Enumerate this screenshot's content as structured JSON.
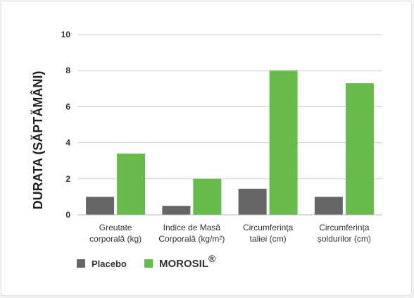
{
  "chart_data": {
    "type": "bar",
    "title": "",
    "ylabel": "DURATA (SĂPTĂMÂNI)",
    "xlabel": "",
    "ylim": [
      0,
      10
    ],
    "yticks": [
      0,
      2,
      4,
      6,
      8,
      10
    ],
    "grid": true,
    "legend_position": "bottom-left",
    "categories": [
      [
        "Greutate",
        "corporală (kg)"
      ],
      [
        "Indice de Masă",
        "Corporală (kg/m²)"
      ],
      [
        "Circumferința",
        "taliei (cm)"
      ],
      [
        "Circumferința",
        "șoldurilor (cm)"
      ]
    ],
    "series": [
      {
        "name": "Placebo",
        "color": "#666666",
        "values": [
          1.0,
          0.5,
          1.45,
          1.0
        ]
      },
      {
        "name": "MOROSIL",
        "name_suffix": "®",
        "color": "#66bb4a",
        "values": [
          3.4,
          2.0,
          8.0,
          7.3
        ]
      }
    ]
  }
}
